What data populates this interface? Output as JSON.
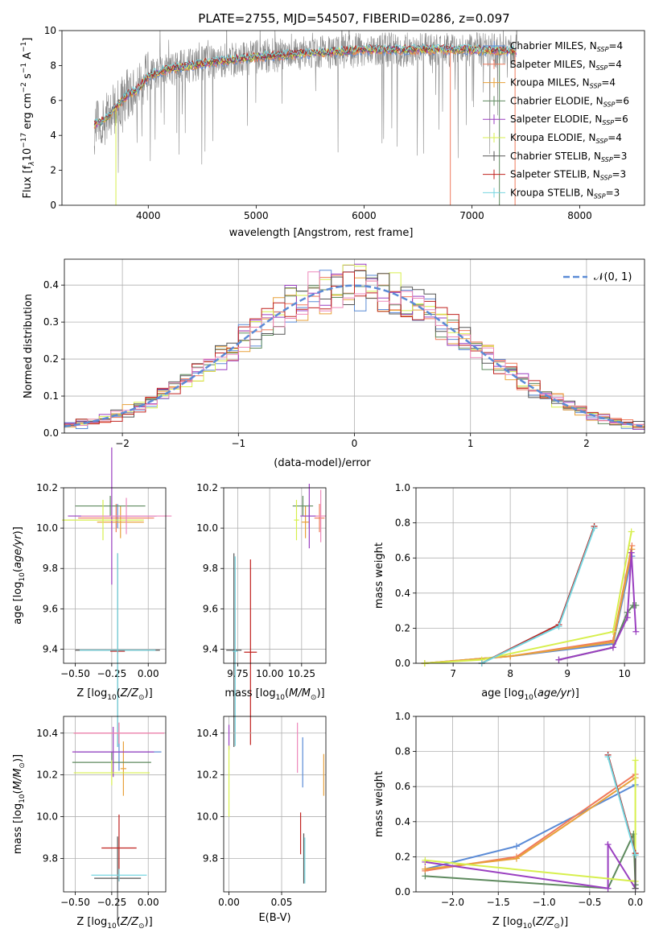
{
  "figure_title": "PLATE=2755, MJD=54507, FIBERID=0286, z=0.097",
  "colors": {
    "chabrier_miles": "#5b8bd6",
    "salpeter_miles": "#f07a5c",
    "kroupa_miles": "#e8a13a",
    "chabrier_elodie": "#5e8a5e",
    "salpeter_elodie": "#9a3fc0",
    "kroupa_elodie": "#d7ef4d",
    "chabrier_stelib": "#555555",
    "salpeter_stelib": "#c0221f",
    "kroupa_stelib": "#74d6e0",
    "normal_curve": "#5b8bd6",
    "pink": "#ee88bb",
    "data": "#888888"
  },
  "chart_data": [
    {
      "type": "line",
      "panel": "spectrum",
      "title": "PLATE=2755, MJD=54507, FIBERID=0286, z=0.097",
      "xlabel": "wavelength [Angstrom, rest frame]",
      "ylabel_parts": [
        "Flux [f",
        "λ",
        "10",
        "−17",
        " erg cm",
        "−2",
        " s",
        "−1",
        " A",
        "−1",
        "]"
      ],
      "xlim": [
        3200,
        8600
      ],
      "ylim": [
        0,
        10
      ],
      "xticks": [
        4000,
        5000,
        6000,
        7000,
        8000
      ],
      "yticks": [
        0,
        2,
        4,
        6,
        8,
        10
      ],
      "legend_position": "right",
      "legend": [
        {
          "label": "Chabrier MILES, N",
          "sub": "SSP",
          "tail": "=4",
          "color_key": "chabrier_miles"
        },
        {
          "label": "Salpeter MILES, N",
          "sub": "SSP",
          "tail": "=4",
          "color_key": "salpeter_miles"
        },
        {
          "label": "Kroupa MILES, N",
          "sub": "SSP",
          "tail": "=4",
          "color_key": "kroupa_miles"
        },
        {
          "label": "Chabrier ELODIE, N",
          "sub": "SSP",
          "tail": "=6",
          "color_key": "chabrier_elodie"
        },
        {
          "label": "Salpeter ELODIE, N",
          "sub": "SSP",
          "tail": "=6",
          "color_key": "salpeter_elodie"
        },
        {
          "label": "Kroupa ELODIE, N",
          "sub": "SSP",
          "tail": "=4",
          "color_key": "kroupa_elodie"
        },
        {
          "label": "Chabrier STELIB, N",
          "sub": "SSP",
          "tail": "=3",
          "color_key": "chabrier_stelib"
        },
        {
          "label": "Salpeter STELIB, N",
          "sub": "SSP",
          "tail": "=3",
          "color_key": "salpeter_stelib"
        },
        {
          "label": "Kroupa STELIB, N",
          "sub": "SSP",
          "tail": "=3",
          "color_key": "kroupa_stelib"
        }
      ],
      "model_envelope": {
        "x": [
          3500,
          3600,
          3700,
          3800,
          3900,
          4000,
          4200,
          4500,
          5000,
          5500,
          6000,
          6500,
          7000,
          7400
        ],
        "y": [
          4.6,
          4.9,
          5.6,
          6.3,
          6.6,
          7.4,
          7.8,
          8.1,
          8.5,
          8.7,
          8.9,
          8.9,
          8.9,
          8.8
        ]
      }
    },
    {
      "type": "line",
      "panel": "residual_histogram",
      "xlabel": "(data-model)/error",
      "ylabel": "Normed distribution",
      "xlim": [
        -2.5,
        2.5
      ],
      "ylim": [
        0,
        0.47
      ],
      "xticks": [
        -2,
        -1,
        0,
        1,
        2
      ],
      "xtick_labels": [
        "−2",
        "−1",
        "0",
        "1",
        "2"
      ],
      "yticks": [
        0.0,
        0.1,
        0.2,
        0.3,
        0.4
      ],
      "ytick_labels": [
        "0.0",
        "0.1",
        "0.2",
        "0.3",
        "0.4"
      ],
      "legend": "𝒩(0, 1)",
      "legend_position": "top-right",
      "curve": "normal pdf, mean 0, sigma 1"
    },
    {
      "type": "scatter",
      "panel": "age_vs_Z",
      "xlabel": "Z [log10(Z/Z⊙)]",
      "ylabel": "age  [log10(age/yr)]",
      "xlim": [
        -0.58,
        0.12
      ],
      "ylim": [
        9.33,
        10.2
      ],
      "xticks": [
        -0.5,
        -0.25,
        0.0
      ],
      "xtick_labels": [
        "−0.50",
        "−0.25",
        "0.00"
      ],
      "yticks": [
        9.4,
        9.6,
        9.8,
        10.0,
        10.2
      ],
      "ytick_labels": [
        "9.4",
        "9.6",
        "9.8",
        "10.0",
        "10.2"
      ],
      "points": [
        {
          "x": -0.21,
          "y": 10.06,
          "xerr": 0.27,
          "yerr": 0.06,
          "color_key": "chabrier_miles"
        },
        {
          "x": -0.22,
          "y": 10.05,
          "xerr": 0.26,
          "yerr": 0.07,
          "color_key": "salpeter_miles"
        },
        {
          "x": -0.19,
          "y": 10.03,
          "xerr": 0.16,
          "yerr": 0.08,
          "color_key": "kroupa_miles"
        },
        {
          "x": -0.26,
          "y": 10.11,
          "xerr": 0.24,
          "yerr": 0.05,
          "color_key": "chabrier_elodie"
        },
        {
          "x": -0.25,
          "y": 10.06,
          "xerr": 0.3,
          "yerr": 0.34,
          "color_key": "salpeter_elodie"
        },
        {
          "x": -0.31,
          "y": 10.04,
          "xerr": 0.28,
          "yerr": 0.1,
          "color_key": "kroupa_elodie"
        },
        {
          "x": -0.21,
          "y": 9.395,
          "xerr": 0.29,
          "yerr": 0.48,
          "color_key": "chabrier_stelib"
        },
        {
          "x": -0.21,
          "y": 9.39,
          "xerr": 0.05,
          "yerr": 0.01,
          "color_key": "salpeter_stelib"
        },
        {
          "x": -0.21,
          "y": 9.395,
          "xerr": 0.26,
          "yerr": 0.48,
          "color_key": "kroupa_stelib"
        },
        {
          "x": -0.15,
          "y": 10.06,
          "xerr": 0.31,
          "yerr": 0.09,
          "color_key": "pink"
        }
      ]
    },
    {
      "type": "scatter",
      "panel": "age_vs_mass",
      "xlabel": "mass [log10(M/M⊙)]",
      "ylabel": "",
      "xlim": [
        9.64,
        10.44
      ],
      "ylim": [
        9.33,
        10.2
      ],
      "xticks": [
        9.75,
        10.0,
        10.25
      ],
      "xtick_labels": [
        "9.75",
        "10.00",
        "10.25"
      ],
      "yticks": [
        9.4,
        9.6,
        9.8,
        10.0,
        10.2
      ],
      "ytick_labels": [
        "9.4",
        "9.6",
        "9.8",
        "10.0",
        "10.2"
      ],
      "points": [
        {
          "x": 10.31,
          "y": 10.06,
          "xerr": 0.05,
          "yerr": 0.06,
          "color_key": "chabrier_miles"
        },
        {
          "x": 10.39,
          "y": 10.05,
          "xerr": 0.04,
          "yerr": 0.07,
          "color_key": "salpeter_miles"
        },
        {
          "x": 10.28,
          "y": 10.03,
          "xerr": 0.03,
          "yerr": 0.08,
          "color_key": "kroupa_miles"
        },
        {
          "x": 10.26,
          "y": 10.11,
          "xerr": 0.08,
          "yerr": 0.05,
          "color_key": "chabrier_elodie"
        },
        {
          "x": 10.31,
          "y": 10.06,
          "xerr": 0.07,
          "yerr": 0.16,
          "color_key": "salpeter_elodie"
        },
        {
          "x": 10.21,
          "y": 10.04,
          "xerr": 0.02,
          "yerr": 0.1,
          "color_key": "kroupa_elodie"
        },
        {
          "x": 9.72,
          "y": 9.395,
          "xerr": 0.06,
          "yerr": 0.48,
          "color_key": "chabrier_stelib"
        },
        {
          "x": 9.85,
          "y": 9.385,
          "xerr": 0.05,
          "yerr": 0.46,
          "color_key": "salpeter_stelib"
        },
        {
          "x": 9.73,
          "y": 9.39,
          "xerr": 0.02,
          "yerr": 0.47,
          "color_key": "kroupa_stelib"
        },
        {
          "x": 10.4,
          "y": 10.06,
          "xerr": 0.04,
          "yerr": 0.13,
          "color_key": "pink"
        }
      ]
    },
    {
      "type": "line",
      "panel": "mass_weight_vs_age",
      "xlabel": "age  [log10(age/yr)]",
      "ylabel": "mass weight",
      "xlim": [
        6.35,
        10.35
      ],
      "ylim": [
        0,
        1
      ],
      "xticks": [
        7,
        8,
        9,
        10
      ],
      "xtick_labels": [
        "7",
        "8",
        "9",
        "10"
      ],
      "yticks": [
        0.0,
        0.2,
        0.4,
        0.6,
        0.8,
        1.0
      ],
      "ytick_labels": [
        "0.0",
        "0.2",
        "0.4",
        "0.6",
        "0.8",
        "1.0"
      ],
      "series": [
        {
          "color_key": "chabrier_miles",
          "x": [
            6.5,
            8.0,
            9.8,
            10.13
          ],
          "y": [
            0.0,
            0.04,
            0.11,
            0.61
          ]
        },
        {
          "color_key": "salpeter_miles",
          "x": [
            6.5,
            8.0,
            9.8,
            10.13
          ],
          "y": [
            0.0,
            0.04,
            0.13,
            0.67
          ]
        },
        {
          "color_key": "kroupa_miles",
          "x": [
            6.5,
            8.0,
            9.8,
            10.13
          ],
          "y": [
            0.0,
            0.04,
            0.12,
            0.65
          ]
        },
        {
          "color_key": "chabrier_elodie",
          "x": [
            8.85,
            9.8,
            10.05,
            10.15,
            10.2
          ],
          "y": [
            0.02,
            0.09,
            0.29,
            0.33,
            0.33
          ]
        },
        {
          "color_key": "salpeter_elodie",
          "x": [
            8.85,
            9.8,
            10.05,
            10.12,
            10.2
          ],
          "y": [
            0.02,
            0.09,
            0.26,
            0.63,
            0.18
          ]
        },
        {
          "color_key": "kroupa_elodie",
          "x": [
            6.5,
            7.5,
            9.8,
            10.12
          ],
          "y": [
            0.0,
            0.02,
            0.18,
            0.75
          ]
        },
        {
          "color_key": "chabrier_stelib",
          "x": [
            7.5,
            8.85,
            9.47
          ],
          "y": [
            0.0,
            0.22,
            0.78
          ]
        },
        {
          "color_key": "salpeter_stelib",
          "x": [
            7.5,
            8.85,
            9.47
          ],
          "y": [
            0.0,
            0.22,
            0.78
          ]
        },
        {
          "color_key": "kroupa_stelib",
          "x": [
            7.5,
            8.85,
            9.47
          ],
          "y": [
            0.0,
            0.21,
            0.77
          ]
        }
      ]
    },
    {
      "type": "scatter",
      "panel": "mass_vs_Z",
      "xlabel": "Z [log10(Z/Z⊙)]",
      "ylabel": "mass [log10(M/M⊙)]",
      "xlim": [
        -0.58,
        0.12
      ],
      "ylim": [
        9.64,
        10.48
      ],
      "xticks": [
        -0.5,
        -0.25,
        0.0
      ],
      "xtick_labels": [
        "−0.50",
        "−0.25",
        "0.00"
      ],
      "yticks": [
        9.8,
        10.0,
        10.2,
        10.4
      ],
      "ytick_labels": [
        "9.8",
        "10.0",
        "10.2",
        "10.4"
      ],
      "points": [
        {
          "x": -0.2,
          "y": 10.31,
          "xerr": 0.29,
          "yerr": 0.09,
          "color_key": "chabrier_miles"
        },
        {
          "x": -0.2,
          "y": 10.4,
          "xerr": 0.31,
          "yerr": 0.05,
          "color_key": "salpeter_miles"
        },
        {
          "x": -0.17,
          "y": 10.23,
          "xerr": 0.02,
          "yerr": 0.13,
          "color_key": "kroupa_miles"
        },
        {
          "x": -0.25,
          "y": 10.26,
          "xerr": 0.27,
          "yerr": 0.05,
          "color_key": "chabrier_elodie"
        },
        {
          "x": -0.24,
          "y": 10.31,
          "xerr": 0.28,
          "yerr": 0.12,
          "color_key": "salpeter_elodie"
        },
        {
          "x": -0.25,
          "y": 10.21,
          "xerr": 0.26,
          "yerr": 0.06,
          "color_key": "kroupa_elodie"
        },
        {
          "x": -0.21,
          "y": 9.705,
          "xerr": 0.16,
          "yerr": 0.2,
          "color_key": "chabrier_stelib"
        },
        {
          "x": -0.2,
          "y": 9.85,
          "xerr": 0.12,
          "yerr": 0.16,
          "color_key": "salpeter_stelib"
        },
        {
          "x": -0.2,
          "y": 9.72,
          "xerr": 0.19,
          "yerr": 0.03,
          "color_key": "kroupa_stelib"
        },
        {
          "x": -0.2,
          "y": 10.4,
          "xerr": 0.31,
          "yerr": 0.05,
          "color_key": "pink"
        }
      ]
    },
    {
      "type": "scatter",
      "panel": "mass_vs_EBV",
      "xlabel": "E(B-V)",
      "ylabel": "",
      "xlim": [
        -0.005,
        0.092
      ],
      "ylim": [
        9.64,
        10.48
      ],
      "xticks": [
        0.0,
        0.05
      ],
      "xtick_labels": [
        "0.00",
        "0.05"
      ],
      "yticks": [
        9.8,
        10.0,
        10.2,
        10.4
      ],
      "ytick_labels": [
        "9.8",
        "10.0",
        "10.2",
        "10.4"
      ],
      "points": [
        {
          "x": 0.0,
          "y": 10.38,
          "yerr": 0.06,
          "color_key": "salpeter_elodie"
        },
        {
          "x": 0.0,
          "y": 10.17,
          "yerr": 0.17,
          "color_key": "kroupa_elodie"
        },
        {
          "x": 0.065,
          "y": 10.33,
          "yerr": 0.12,
          "color_key": "pink"
        },
        {
          "x": 0.07,
          "y": 10.26,
          "yerr": 0.12,
          "color_key": "chabrier_miles"
        },
        {
          "x": 0.09,
          "y": 10.2,
          "yerr": 0.1,
          "color_key": "kroupa_miles"
        },
        {
          "x": 0.068,
          "y": 9.92,
          "yerr": 0.1,
          "color_key": "salpeter_stelib"
        },
        {
          "x": 0.071,
          "y": 9.8,
          "yerr": 0.12,
          "color_key": "chabrier_stelib"
        },
        {
          "x": 0.072,
          "y": 9.79,
          "yerr": 0.11,
          "color_key": "kroupa_stelib"
        }
      ]
    },
    {
      "type": "line",
      "panel": "mass_weight_vs_Z",
      "xlabel": "Z [log10(Z/Z⊙)]",
      "ylabel": "mass weight",
      "xlim": [
        -2.4,
        0.1
      ],
      "ylim": [
        0,
        1
      ],
      "xticks": [
        -2.0,
        -1.5,
        -1.0,
        -0.5,
        0.0
      ],
      "xtick_labels": [
        "−2.0",
        "−1.5",
        "−1.0",
        "−0.5",
        "0.0"
      ],
      "yticks": [
        0.0,
        0.2,
        0.4,
        0.6,
        0.8,
        1.0
      ],
      "ytick_labels": [
        "0.0",
        "0.2",
        "0.4",
        "0.6",
        "0.8",
        "1.0"
      ],
      "series": [
        {
          "color_key": "chabrier_miles",
          "x": [
            -2.3,
            -1.3,
            0.0
          ],
          "y": [
            0.13,
            0.26,
            0.61
          ]
        },
        {
          "color_key": "salpeter_miles",
          "x": [
            -2.3,
            -1.3,
            0.0
          ],
          "y": [
            0.12,
            0.2,
            0.67
          ]
        },
        {
          "color_key": "kroupa_miles",
          "x": [
            -2.3,
            -1.3,
            0.0
          ],
          "y": [
            0.13,
            0.19,
            0.65
          ]
        },
        {
          "color_key": "chabrier_elodie",
          "x": [
            -2.3,
            -0.3,
            -0.02,
            0.0
          ],
          "y": [
            0.09,
            0.02,
            0.33,
            0.04
          ]
        },
        {
          "color_key": "salpeter_elodie",
          "x": [
            -2.3,
            -0.3,
            -0.3,
            0.0
          ],
          "y": [
            0.17,
            0.02,
            0.27,
            0.02
          ]
        },
        {
          "color_key": "kroupa_elodie",
          "x": [
            -2.3,
            0.0,
            0.0
          ],
          "y": [
            0.18,
            0.06,
            0.75
          ]
        },
        {
          "color_key": "chabrier_stelib",
          "x": [
            -0.3,
            0.0,
            0.0
          ],
          "y": [
            0.78,
            0.22,
            0.02
          ]
        },
        {
          "color_key": "salpeter_stelib",
          "x": [
            -0.3,
            0.0
          ],
          "y": [
            0.78,
            0.22
          ]
        },
        {
          "color_key": "kroupa_stelib",
          "x": [
            -0.3,
            0.0
          ],
          "y": [
            0.77,
            0.21
          ]
        }
      ]
    }
  ]
}
